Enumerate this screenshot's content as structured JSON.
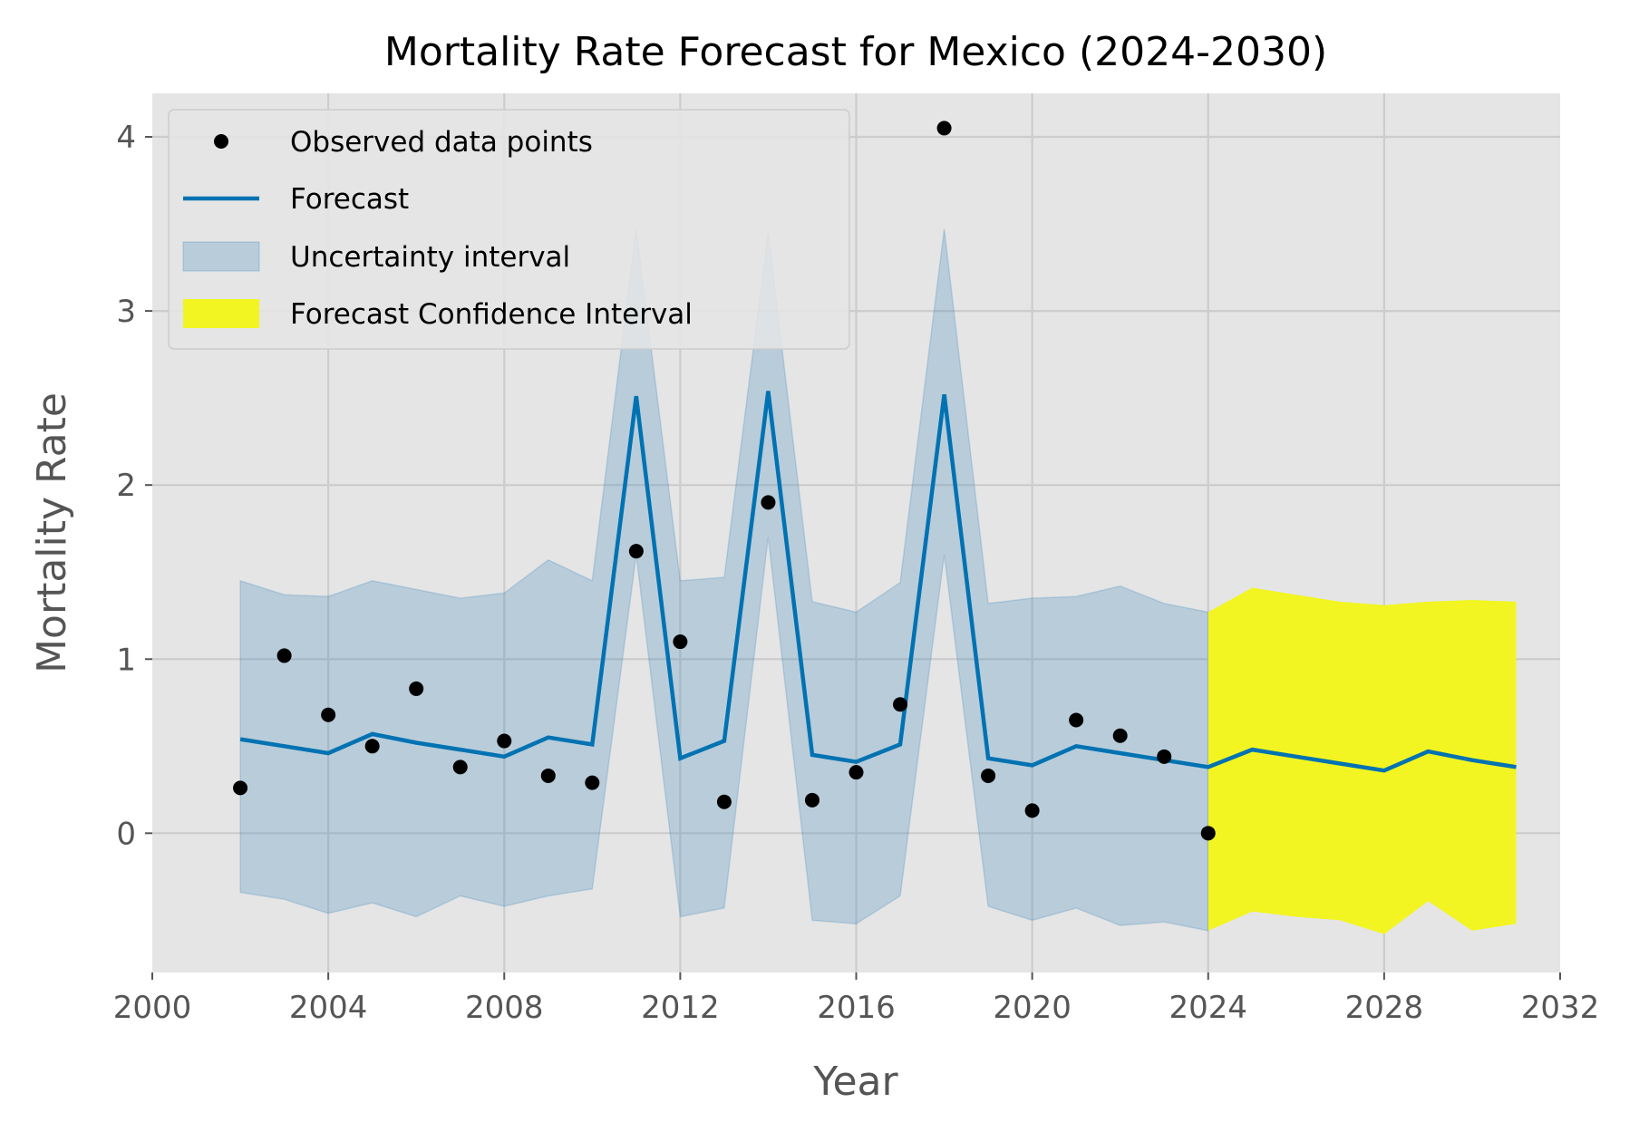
{
  "chart_data": {
    "type": "line",
    "title": "Mortality Rate Forecast for Mexico (2024-2030)",
    "xlabel": "Year",
    "ylabel": "Mortality Rate",
    "xlim": [
      2000,
      2032
    ],
    "ylim": [
      -0.8,
      4.25
    ],
    "xticks": [
      2000,
      2004,
      2008,
      2012,
      2016,
      2020,
      2024,
      2028,
      2032
    ],
    "xtick_labels": [
      "2000",
      "2004",
      "2008",
      "2012",
      "2016",
      "2020",
      "2024",
      "2028",
      "2032"
    ],
    "yticks": [
      0,
      1,
      2,
      3,
      4
    ],
    "ytick_labels": [
      "0",
      "1",
      "2",
      "3",
      "4"
    ],
    "grid": true,
    "legend_position": "top-left",
    "colors": {
      "observed": "#000000",
      "forecast": "#0072b2",
      "uncertainty": "#a7c4d6",
      "forecast_ci": "#f2f521",
      "background": "#e5e5e5",
      "grid": "#cccccc"
    },
    "legend": [
      {
        "key": "observed",
        "label": "Observed data points"
      },
      {
        "key": "forecast",
        "label": "Forecast"
      },
      {
        "key": "uncertainty",
        "label": "Uncertainty interval"
      },
      {
        "key": "forecast_ci",
        "label": "Forecast Confidence Interval"
      }
    ],
    "observed": {
      "x": [
        2002,
        2003,
        2004,
        2005,
        2006,
        2007,
        2008,
        2009,
        2010,
        2011,
        2012,
        2013,
        2014,
        2015,
        2016,
        2017,
        2018,
        2019,
        2020,
        2021,
        2022,
        2023,
        2024
      ],
      "y": [
        0.26,
        1.02,
        0.68,
        0.5,
        0.83,
        0.38,
        0.53,
        0.33,
        0.29,
        1.62,
        1.1,
        0.18,
        1.9,
        0.19,
        0.35,
        0.74,
        4.05,
        0.33,
        0.13,
        0.65,
        0.56,
        0.44,
        0.0
      ]
    },
    "forecast": {
      "x": [
        2002,
        2003,
        2004,
        2005,
        2006,
        2007,
        2008,
        2009,
        2010,
        2011,
        2012,
        2013,
        2014,
        2015,
        2016,
        2017,
        2018,
        2019,
        2020,
        2021,
        2022,
        2023,
        2024,
        2025,
        2026,
        2027,
        2028,
        2029,
        2030,
        2031
      ],
      "y": [
        0.54,
        0.5,
        0.46,
        0.57,
        0.52,
        0.48,
        0.44,
        0.55,
        0.51,
        2.51,
        0.43,
        0.53,
        2.54,
        0.45,
        0.41,
        0.51,
        2.52,
        0.43,
        0.39,
        0.5,
        0.46,
        0.42,
        0.38,
        0.48,
        0.44,
        0.4,
        0.36,
        0.47,
        0.42,
        0.38
      ]
    },
    "uncertainty_interval": {
      "x": [
        2002,
        2003,
        2004,
        2005,
        2006,
        2007,
        2008,
        2009,
        2010,
        2011,
        2012,
        2013,
        2014,
        2015,
        2016,
        2017,
        2018,
        2019,
        2020,
        2021,
        2022,
        2023,
        2024
      ],
      "lower": [
        -0.34,
        -0.38,
        -0.46,
        -0.4,
        -0.48,
        -0.36,
        -0.42,
        -0.36,
        -0.32,
        1.6,
        -0.48,
        -0.43,
        1.7,
        -0.5,
        -0.52,
        -0.36,
        1.6,
        -0.42,
        -0.5,
        -0.43,
        -0.53,
        -0.51,
        -0.56
      ],
      "upper": [
        1.45,
        1.37,
        1.36,
        1.45,
        1.4,
        1.35,
        1.38,
        1.57,
        1.45,
        3.47,
        1.45,
        1.47,
        3.45,
        1.33,
        1.27,
        1.44,
        3.47,
        1.32,
        1.35,
        1.36,
        1.42,
        1.32,
        1.27
      ]
    },
    "forecast_confidence_interval": {
      "x": [
        2024,
        2025,
        2026,
        2027,
        2028,
        2029,
        2030,
        2031
      ],
      "lower": [
        -0.56,
        -0.45,
        -0.48,
        -0.5,
        -0.58,
        -0.39,
        -0.56,
        -0.52
      ],
      "upper": [
        1.27,
        1.41,
        1.37,
        1.33,
        1.31,
        1.33,
        1.34,
        1.33
      ]
    }
  }
}
